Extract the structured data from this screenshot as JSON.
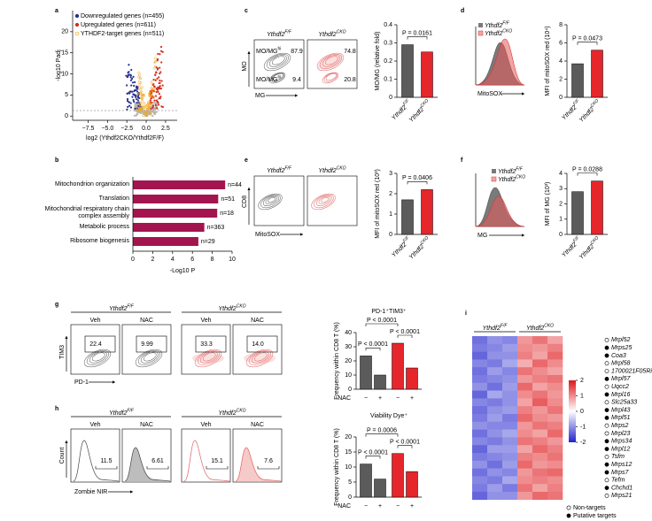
{
  "genotypes": {
    "wt": {
      "gene": "Ythdf2",
      "sup": "F/F"
    },
    "cko": {
      "gene": "Ythdf2",
      "sup": "CKO"
    }
  },
  "colors": {
    "wt": "#5b5b5b",
    "cko": "#e5262b"
  },
  "a": {
    "label": "a",
    "legend": [
      {
        "text": "Downregulated genes (n=455)",
        "color": "#27308c"
      },
      {
        "text": "Upregulated genes (n=611)",
        "color": "#d62d20"
      },
      {
        "text": "YTHDF2-target genes (n=511)",
        "color": "#f2a51a"
      }
    ],
    "xlabel": "log2 (Ythdf2CKO/Ythdf2F/F)",
    "ylabel": "-log10 Padj",
    "threshold": 1.3,
    "xlim": [
      -9.5,
      4
    ],
    "xticks": [
      {
        "value": -7.5,
        "label": "−7.5"
      },
      {
        "value": -5,
        "label": "−5.0"
      },
      {
        "value": -2.5,
        "label": "−2.5"
      },
      {
        "value": 0,
        "label": "0.0"
      },
      {
        "value": 2.5,
        "label": "2.5"
      }
    ],
    "ylim": [
      -1,
      25
    ],
    "yticks": [
      0,
      5,
      10,
      15,
      20
    ]
  },
  "b": {
    "label": "b",
    "categories": [
      "Mitochondrion organization",
      "Translation",
      "Mitochondrial respiratory chain complex assembly",
      "Metabolic process",
      "Ribosome biogenesis"
    ],
    "values": [
      9.3,
      8.6,
      8.5,
      7.2,
      6.6
    ],
    "annotations": [
      "n=44",
      "n=51",
      "n=18",
      "n=363",
      "n=29"
    ],
    "color": "#a3154e",
    "xlim": [
      0,
      10
    ],
    "xticks": [
      0,
      2,
      4,
      6,
      8,
      10
    ],
    "xlabel": "-Log10 P"
  },
  "c": {
    "label": "c",
    "flow": {
      "xlabel": "MG",
      "ylabel": "MO",
      "gate_names": [
        {
          "base": "MO/MG",
          "sup": "hi"
        },
        {
          "base": "MO/MG",
          "sup": "lo"
        }
      ],
      "gates": [
        [
          "87.9",
          "9.4"
        ],
        [
          "74.8",
          "20.8"
        ]
      ]
    },
    "bar": {
      "ylabel": "MO/MG (relative fold)",
      "ylim": [
        0,
        0.4
      ],
      "yticks": [
        0,
        0.1,
        0.2,
        0.3,
        0.4
      ],
      "values": [
        0.29,
        0.25
      ],
      "pvalues": [
        "P = 0.0161"
      ]
    }
  },
  "d": {
    "label": "d",
    "hist": {
      "xlabel": "MitoSOX"
    },
    "bar": {
      "ylabel": "MFI of mitoSOX red (10⁴)",
      "ylim": [
        0,
        8
      ],
      "yticks": [
        0,
        2,
        4,
        6,
        8
      ],
      "values": [
        3.7,
        5.2
      ],
      "pvalues": [
        "P = 0.0473"
      ]
    }
  },
  "e": {
    "label": "e",
    "flow": {
      "xlabel": "MitoSOX",
      "ylabel": "CD8"
    },
    "bar": {
      "ylabel": "MFI of mitoSOX red (10³)",
      "ylim": [
        0,
        3
      ],
      "yticks": [
        0,
        1,
        2,
        3
      ],
      "values": [
        1.7,
        2.2
      ],
      "pvalues": [
        "P = 0.0406"
      ]
    }
  },
  "f": {
    "label": "f",
    "hist": {
      "xlabel": "MG"
    },
    "bar": {
      "ylabel": "MFI of MG (10³)",
      "ylim": [
        0,
        4
      ],
      "yticks": [
        0,
        1,
        2,
        3,
        4
      ],
      "values": [
        2.8,
        3.5
      ],
      "pvalues": [
        "P = 0.0288"
      ]
    }
  },
  "g": {
    "label": "g",
    "treatments": [
      "Veh",
      "NAC",
      "Veh",
      "NAC"
    ],
    "flow": {
      "xlabel": "PD-1",
      "ylabel": "TIM3",
      "gates": [
        "22.4",
        "9.99",
        "33.3",
        "14.0"
      ]
    },
    "bar": {
      "title": "PD-1⁺TIM3⁺",
      "ylabel": "Frequency within CD8 T (%)",
      "ylim": [
        0,
        40
      ],
      "yticks": [
        0,
        10,
        20,
        30,
        40
      ],
      "values": [
        23.5,
        10,
        32.5,
        15
      ],
      "treatment_label": "NAC",
      "signs": [
        "−",
        "+",
        "−",
        "+"
      ],
      "pvalues": [
        "P < 0.0001",
        "P < 0.0001",
        "P < 0.0001"
      ]
    }
  },
  "h": {
    "label": "h",
    "treatments": [
      "Veh",
      "NAC",
      "Veh",
      "NAC"
    ],
    "flow": {
      "xlabel": "Zombie NIR",
      "ylabel": "Count",
      "gates": [
        "11.5",
        "6.61",
        "15.1",
        "7.6"
      ]
    },
    "bar": {
      "title": "Viability Dye⁺",
      "ylabel": "Frequency within CD8 T (%)",
      "ylim": [
        0,
        20
      ],
      "yticks": [
        0,
        5,
        10,
        15,
        20
      ],
      "values": [
        11,
        6,
        14.5,
        8.5
      ],
      "treatment_label": "NAC",
      "signs": [
        "−",
        "+",
        "−",
        "+"
      ],
      "pvalues": [
        "P < 0.0001",
        "P = 0.0006",
        "P < 0.0001"
      ]
    }
  },
  "i": {
    "label": "i",
    "clim": [
      -2,
      2
    ],
    "cticks": [
      2,
      1,
      0,
      -1,
      -2
    ],
    "legend": [
      "Non-targets",
      "Putative targets"
    ],
    "genes": [
      {
        "name": "Mrpl52",
        "target": false,
        "values": [
          -1.3,
          -1.0,
          -1.1,
          0.9,
          1.2,
          0.8
        ]
      },
      {
        "name": "Mrps25",
        "target": true,
        "values": [
          -1.2,
          -1.1,
          -0.9,
          1.0,
          0.9,
          1.1
        ]
      },
      {
        "name": "Coa3",
        "target": true,
        "values": [
          -1.4,
          -1.0,
          -1.0,
          1.1,
          0.8,
          1.3
        ]
      },
      {
        "name": "Mrpl58",
        "target": false,
        "values": [
          -1.1,
          -1.2,
          -0.8,
          0.7,
          1.3,
          1.0
        ]
      },
      {
        "name": "1700021F05Rik",
        "target": false,
        "values": [
          -1.3,
          -0.9,
          -1.1,
          1.2,
          1.0,
          0.8
        ]
      },
      {
        "name": "Mrpl57",
        "target": true,
        "values": [
          -1.2,
          -1.1,
          -1.0,
          0.9,
          1.1,
          1.2
        ]
      },
      {
        "name": "Uqcc2",
        "target": false,
        "values": [
          -1.0,
          -1.3,
          -0.9,
          1.3,
          0.8,
          1.0
        ]
      },
      {
        "name": "Mrpl16",
        "target": true,
        "values": [
          -1.4,
          -0.8,
          -1.0,
          1.0,
          1.2,
          0.9
        ]
      },
      {
        "name": "Slc25a33",
        "target": false,
        "values": [
          -1.1,
          -1.2,
          -1.0,
          0.8,
          1.4,
          1.0
        ]
      },
      {
        "name": "Mrpl43",
        "target": true,
        "values": [
          -1.3,
          -1.0,
          -0.9,
          1.1,
          0.9,
          1.2
        ]
      },
      {
        "name": "Mrpl51",
        "target": true,
        "values": [
          -1.2,
          -0.9,
          -1.2,
          1.3,
          1.0,
          0.9
        ]
      },
      {
        "name": "Mrps2",
        "target": false,
        "values": [
          -1.0,
          -1.1,
          -1.1,
          0.9,
          1.2,
          1.1
        ]
      },
      {
        "name": "Mrpl23",
        "target": false,
        "values": [
          -1.3,
          -1.0,
          -0.8,
          1.0,
          0.8,
          1.3
        ]
      },
      {
        "name": "Mrps34",
        "target": true,
        "values": [
          -1.1,
          -1.2,
          -1.0,
          1.2,
          1.1,
          0.9
        ]
      },
      {
        "name": "Mrpl12",
        "target": true,
        "values": [
          -1.4,
          -0.9,
          -0.9,
          0.8,
          1.3,
          1.1
        ]
      },
      {
        "name": "Tsfm",
        "target": false,
        "values": [
          -1.2,
          -1.1,
          -1.0,
          1.1,
          1.0,
          1.2
        ]
      },
      {
        "name": "Mrps12",
        "target": true,
        "values": [
          -1.0,
          -1.3,
          -0.9,
          1.3,
          0.9,
          1.0
        ]
      },
      {
        "name": "Mrps7",
        "target": true,
        "values": [
          -1.3,
          -1.0,
          -1.1,
          0.9,
          1.2,
          1.3
        ]
      },
      {
        "name": "Tefm",
        "target": false,
        "values": [
          -1.1,
          -1.2,
          -0.8,
          1.0,
          1.1,
          1.0
        ]
      },
      {
        "name": "Chchd1",
        "target": true,
        "values": [
          -1.2,
          -0.9,
          -1.2,
          1.2,
          0.8,
          1.1
        ]
      },
      {
        "name": "Mrps21",
        "target": false,
        "values": [
          -1.4,
          -1.0,
          -1.0,
          0.9,
          1.3,
          1.2
        ]
      }
    ]
  }
}
